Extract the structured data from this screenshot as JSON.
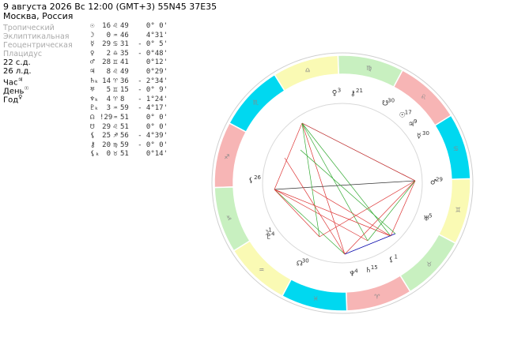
{
  "header": {
    "line1": "9 августа 2026  Вс  12:00 (GMT+3) 55N45  37E35",
    "line2": "Москва, Россия"
  },
  "settings": [
    "Тропический",
    "Эклиптикальная",
    "Геоцентрическая",
    "Плацидус"
  ],
  "info": [
    {
      "text": "22 с.д."
    },
    {
      "text": "26 л.д."
    },
    {
      "text": "Час",
      "sym": "♃"
    },
    {
      "text": "День",
      "sym": "☉"
    },
    {
      "text": "Год",
      "sym": "♀"
    }
  ],
  "planets": [
    {
      "sym": "☉",
      "deg": "16",
      "sign": "♌",
      "min": "49",
      "lat": "0° 0'"
    },
    {
      "sym": "☽",
      "deg": "0",
      "sign": "♒",
      "min": "46",
      "lat": "4°31'"
    },
    {
      "sym": "☿",
      "deg": "29",
      "sign": "♋",
      "min": "31",
      "lat": "- 0° 5'"
    },
    {
      "sym": "♀",
      "deg": "2",
      "sign": "♎",
      "min": "35",
      "lat": "- 0°48'"
    },
    {
      "sym": "♂",
      "deg": "28",
      "sign": "♊",
      "min": "41",
      "lat": "0°12'"
    },
    {
      "sym": "♃",
      "deg": "8",
      "sign": "♌",
      "min": "49",
      "lat": "0°29'"
    },
    {
      "sym": "♄ₖ",
      "deg": "14",
      "sign": "♈",
      "min": "36",
      "lat": "- 2°34'"
    },
    {
      "sym": "♅",
      "deg": "5",
      "sign": "♊",
      "min": "15",
      "lat": "- 0° 9'"
    },
    {
      "sym": "♆ₖ",
      "deg": "4",
      "sign": "♈",
      "min": "8",
      "lat": "- 1°24'"
    },
    {
      "sym": "♇ₖ",
      "deg": "3",
      "sign": "♒",
      "min": "59",
      "lat": "- 4°17'"
    },
    {
      "sym": "☊",
      "deg": "!29",
      "sign": "♒",
      "min": "51",
      "lat": "0° 0'"
    },
    {
      "sym": "☋",
      "deg": "29",
      "sign": "♌",
      "min": "51",
      "lat": "0° 0'"
    },
    {
      "sym": "⚸",
      "deg": "25",
      "sign": "♐",
      "min": "56",
      "lat": "- 4°39'"
    },
    {
      "sym": "⚷",
      "deg": "20",
      "sign": "♍",
      "min": "59",
      "lat": "- 0° 0'"
    },
    {
      "sym": "⚸ₖ",
      "deg": "0",
      "sign": "♉",
      "min": "51",
      "lat": "0°14'"
    }
  ],
  "wheel": {
    "zodiac_signs": [
      "♈",
      "♉",
      "♊",
      "♋",
      "♌",
      "♍",
      "♎",
      "♏",
      "♐",
      "♑",
      "♒",
      "♓"
    ],
    "element_colors": {
      "fire": "#f7b5b5",
      "earth": "#c8f0c0",
      "air": "#fafab4",
      "water": "#00d8f0"
    },
    "asc_longitude": 268,
    "chart_points": [
      {
        "sym": "♆",
        "num": "4",
        "lon": 4.1
      },
      {
        "sym": "♄",
        "num": "15",
        "lon": 14.6
      },
      {
        "sym": "♅",
        "num": "5",
        "lon": 65.3
      },
      {
        "sym": "♂",
        "num": "29",
        "lon": 88.7
      },
      {
        "sym": "☿",
        "num": "30",
        "lon": 119.5
      },
      {
        "sym": "♃",
        "num": "9",
        "lon": 128.8
      },
      {
        "sym": "☉",
        "num": "17",
        "lon": 136.8
      },
      {
        "sym": "☋",
        "num": "30",
        "lon": 149.9
      },
      {
        "sym": "⚷",
        "num": "21",
        "lon": 171.0
      },
      {
        "sym": "♀",
        "num": "3",
        "lon": 182.6
      },
      {
        "sym": "⚸",
        "num": "26",
        "lon": 265.9
      },
      {
        "sym": "♇",
        "num": "4",
        "lon": 304.0
      },
      {
        "sym": "☽",
        "num": "1",
        "lon": 300.8
      },
      {
        "sym": "☊",
        "num": "30",
        "lon": 329.9
      },
      {
        "sym": "⚸",
        "num": "1",
        "lon": 30.9
      }
    ]
  }
}
